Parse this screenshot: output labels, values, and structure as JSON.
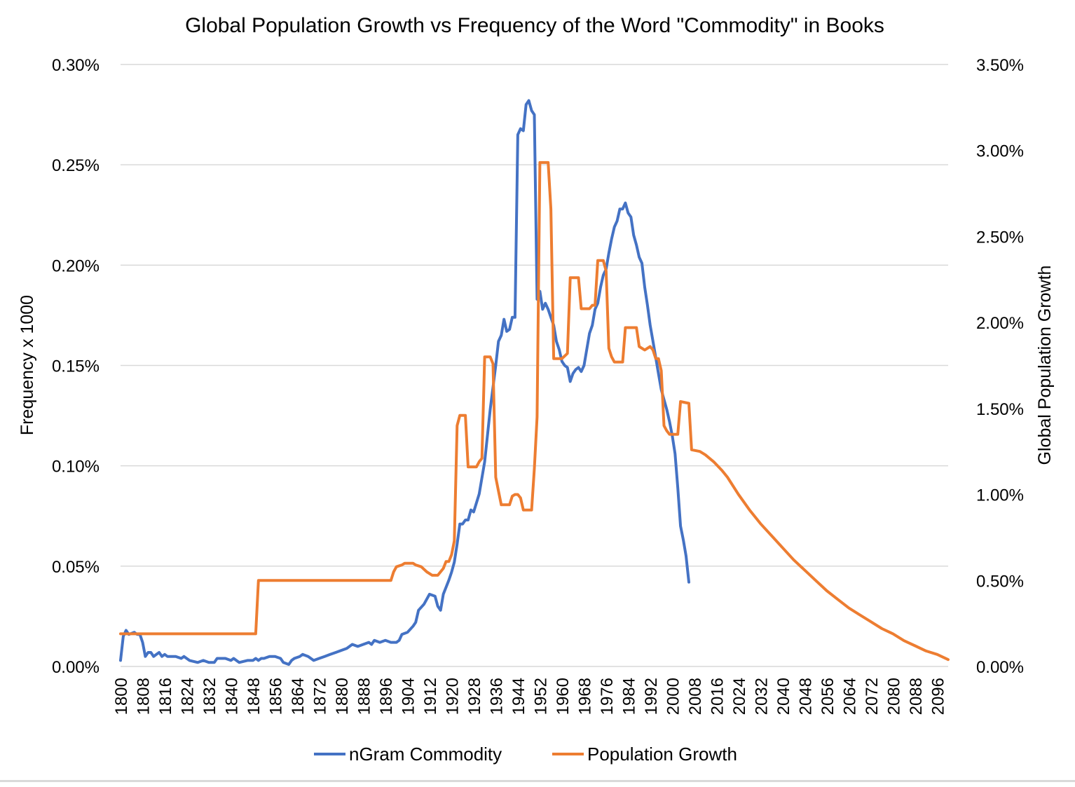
{
  "chart_data": {
    "type": "line",
    "title": "Global Population Growth vs Frequency of the Word \"Commodity\" in Books",
    "ylabel_left": "Frequency x 1000",
    "ylabel_right": "Global Population Growth",
    "xlabel": "",
    "xlim": [
      1800,
      2100
    ],
    "ylim_left": [
      0,
      0.3
    ],
    "ylim_right": [
      0,
      3.5
    ],
    "y_left_ticks": [
      "0.00%",
      "0.05%",
      "0.10%",
      "0.15%",
      "0.20%",
      "0.25%",
      "0.30%"
    ],
    "y_right_ticks": [
      "0.00%",
      "0.50%",
      "1.00%",
      "1.50%",
      "2.00%",
      "2.50%",
      "3.00%",
      "3.50%"
    ],
    "x_ticks": [
      "1800",
      "1808",
      "1816",
      "1824",
      "1832",
      "1840",
      "1848",
      "1856",
      "1864",
      "1872",
      "1880",
      "1888",
      "1896",
      "1904",
      "1912",
      "1920",
      "1928",
      "1936",
      "1944",
      "1952",
      "1960",
      "1968",
      "1976",
      "1984",
      "1992",
      "2000",
      "2008",
      "2016",
      "2024",
      "2032",
      "2040",
      "2048",
      "2056",
      "2064",
      "2072",
      "2080",
      "2088",
      "2096"
    ],
    "grid": true,
    "legend_position": "bottom",
    "series": [
      {
        "name": "nGram Commodity",
        "axis": "left",
        "color": "#4472C4",
        "points": [
          [
            1800,
            0.003
          ],
          [
            1801,
            0.015
          ],
          [
            1802,
            0.018
          ],
          [
            1803,
            0.016
          ],
          [
            1805,
            0.017
          ],
          [
            1806,
            0.016
          ],
          [
            1807,
            0.016
          ],
          [
            1808,
            0.012
          ],
          [
            1809,
            0.005
          ],
          [
            1810,
            0.007
          ],
          [
            1811,
            0.007
          ],
          [
            1812,
            0.005
          ],
          [
            1813,
            0.006
          ],
          [
            1814,
            0.007
          ],
          [
            1815,
            0.005
          ],
          [
            1816,
            0.006
          ],
          [
            1817,
            0.005
          ],
          [
            1820,
            0.005
          ],
          [
            1822,
            0.004
          ],
          [
            1823,
            0.005
          ],
          [
            1825,
            0.003
          ],
          [
            1828,
            0.002
          ],
          [
            1830,
            0.003
          ],
          [
            1832,
            0.002
          ],
          [
            1834,
            0.002
          ],
          [
            1835,
            0.004
          ],
          [
            1838,
            0.004
          ],
          [
            1840,
            0.003
          ],
          [
            1841,
            0.004
          ],
          [
            1842,
            0.003
          ],
          [
            1843,
            0.002
          ],
          [
            1846,
            0.003
          ],
          [
            1848,
            0.003
          ],
          [
            1849,
            0.004
          ],
          [
            1850,
            0.003
          ],
          [
            1851,
            0.004
          ],
          [
            1852,
            0.004
          ],
          [
            1854,
            0.005
          ],
          [
            1856,
            0.005
          ],
          [
            1858,
            0.004
          ],
          [
            1859,
            0.002
          ],
          [
            1861,
            0.001
          ],
          [
            1862,
            0.003
          ],
          [
            1863,
            0.004
          ],
          [
            1865,
            0.005
          ],
          [
            1866,
            0.006
          ],
          [
            1868,
            0.005
          ],
          [
            1869,
            0.004
          ],
          [
            1870,
            0.003
          ],
          [
            1872,
            0.004
          ],
          [
            1874,
            0.005
          ],
          [
            1876,
            0.006
          ],
          [
            1878,
            0.007
          ],
          [
            1880,
            0.008
          ],
          [
            1882,
            0.009
          ],
          [
            1884,
            0.011
          ],
          [
            1886,
            0.01
          ],
          [
            1888,
            0.011
          ],
          [
            1890,
            0.012
          ],
          [
            1891,
            0.011
          ],
          [
            1892,
            0.013
          ],
          [
            1894,
            0.012
          ],
          [
            1896,
            0.013
          ],
          [
            1898,
            0.012
          ],
          [
            1900,
            0.012
          ],
          [
            1901,
            0.013
          ],
          [
            1902,
            0.016
          ],
          [
            1904,
            0.017
          ],
          [
            1906,
            0.02
          ],
          [
            1907,
            0.022
          ],
          [
            1908,
            0.028
          ],
          [
            1910,
            0.031
          ],
          [
            1912,
            0.036
          ],
          [
            1914,
            0.035
          ],
          [
            1915,
            0.03
          ],
          [
            1916,
            0.028
          ],
          [
            1917,
            0.036
          ],
          [
            1919,
            0.043
          ],
          [
            1920,
            0.047
          ],
          [
            1921,
            0.052
          ],
          [
            1922,
            0.061
          ],
          [
            1923,
            0.071
          ],
          [
            1924,
            0.071
          ],
          [
            1925,
            0.073
          ],
          [
            1926,
            0.073
          ],
          [
            1927,
            0.078
          ],
          [
            1928,
            0.077
          ],
          [
            1930,
            0.086
          ],
          [
            1932,
            0.102
          ],
          [
            1934,
            0.128
          ],
          [
            1936,
            0.15
          ],
          [
            1937,
            0.162
          ],
          [
            1938,
            0.165
          ],
          [
            1939,
            0.173
          ],
          [
            1940,
            0.167
          ],
          [
            1941,
            0.168
          ],
          [
            1942,
            0.174
          ],
          [
            1943,
            0.174
          ],
          [
            1944,
            0.265
          ],
          [
            1945,
            0.268
          ],
          [
            1946,
            0.267
          ],
          [
            1947,
            0.28
          ],
          [
            1948,
            0.282
          ],
          [
            1949,
            0.277
          ],
          [
            1950,
            0.275
          ],
          [
            1951,
            0.183
          ],
          [
            1952,
            0.187
          ],
          [
            1953,
            0.178
          ],
          [
            1954,
            0.181
          ],
          [
            1955,
            0.178
          ],
          [
            1956,
            0.174
          ],
          [
            1957,
            0.17
          ],
          [
            1958,
            0.162
          ],
          [
            1959,
            0.158
          ],
          [
            1960,
            0.152
          ],
          [
            1961,
            0.15
          ],
          [
            1962,
            0.149
          ],
          [
            1963,
            0.142
          ],
          [
            1964,
            0.146
          ],
          [
            1965,
            0.148
          ],
          [
            1966,
            0.149
          ],
          [
            1967,
            0.147
          ],
          [
            1968,
            0.15
          ],
          [
            1969,
            0.158
          ],
          [
            1970,
            0.166
          ],
          [
            1971,
            0.17
          ],
          [
            1972,
            0.178
          ],
          [
            1973,
            0.181
          ],
          [
            1974,
            0.189
          ],
          [
            1975,
            0.195
          ],
          [
            1976,
            0.198
          ],
          [
            1977,
            0.206
          ],
          [
            1978,
            0.213
          ],
          [
            1979,
            0.219
          ],
          [
            1980,
            0.222
          ],
          [
            1981,
            0.228
          ],
          [
            1982,
            0.228
          ],
          [
            1983,
            0.231
          ],
          [
            1984,
            0.226
          ],
          [
            1985,
            0.224
          ],
          [
            1986,
            0.215
          ],
          [
            1987,
            0.21
          ],
          [
            1988,
            0.204
          ],
          [
            1989,
            0.201
          ],
          [
            1990,
            0.189
          ],
          [
            1991,
            0.18
          ],
          [
            1992,
            0.17
          ],
          [
            1993,
            0.162
          ],
          [
            1994,
            0.154
          ],
          [
            1995,
            0.146
          ],
          [
            1996,
            0.138
          ],
          [
            1997,
            0.133
          ],
          [
            1998,
            0.128
          ],
          [
            1999,
            0.122
          ],
          [
            2000,
            0.115
          ],
          [
            2001,
            0.106
          ],
          [
            2002,
            0.089
          ],
          [
            2003,
            0.07
          ],
          [
            2004,
            0.063
          ],
          [
            2005,
            0.055
          ],
          [
            2006,
            0.042
          ]
        ]
      },
      {
        "name": "Population Growth",
        "axis": "right",
        "color": "#ED7D31",
        "points": [
          [
            1800,
            0.19
          ],
          [
            1849,
            0.19
          ],
          [
            1850,
            0.5
          ],
          [
            1898,
            0.5
          ],
          [
            1899,
            0.55
          ],
          [
            1900,
            0.58
          ],
          [
            1902,
            0.59
          ],
          [
            1903,
            0.6
          ],
          [
            1906,
            0.6
          ],
          [
            1907,
            0.59
          ],
          [
            1909,
            0.58
          ],
          [
            1911,
            0.55
          ],
          [
            1913,
            0.53
          ],
          [
            1915,
            0.53
          ],
          [
            1917,
            0.57
          ],
          [
            1918,
            0.61
          ],
          [
            1919,
            0.61
          ],
          [
            1920,
            0.65
          ],
          [
            1921,
            0.73
          ],
          [
            1922,
            1.4
          ],
          [
            1923,
            1.46
          ],
          [
            1925,
            1.46
          ],
          [
            1926,
            1.16
          ],
          [
            1929,
            1.16
          ],
          [
            1930,
            1.19
          ],
          [
            1931,
            1.21
          ],
          [
            1932,
            1.8
          ],
          [
            1934,
            1.8
          ],
          [
            1935,
            1.76
          ],
          [
            1936,
            1.1
          ],
          [
            1937,
            1.02
          ],
          [
            1938,
            0.94
          ],
          [
            1941,
            0.94
          ],
          [
            1942,
            0.99
          ],
          [
            1943,
            1.0
          ],
          [
            1944,
            1.0
          ],
          [
            1945,
            0.98
          ],
          [
            1946,
            0.91
          ],
          [
            1949,
            0.91
          ],
          [
            1950,
            1.15
          ],
          [
            1951,
            1.45
          ],
          [
            1952,
            2.93
          ],
          [
            1955,
            2.93
          ],
          [
            1956,
            2.66
          ],
          [
            1957,
            1.79
          ],
          [
            1960,
            1.79
          ],
          [
            1962,
            1.82
          ],
          [
            1963,
            2.26
          ],
          [
            1966,
            2.26
          ],
          [
            1967,
            2.08
          ],
          [
            1970,
            2.08
          ],
          [
            1971,
            2.1
          ],
          [
            1972,
            2.1
          ],
          [
            1973,
            2.36
          ],
          [
            1975,
            2.36
          ],
          [
            1976,
            2.3
          ],
          [
            1977,
            1.85
          ],
          [
            1978,
            1.8
          ],
          [
            1979,
            1.77
          ],
          [
            1982,
            1.77
          ],
          [
            1983,
            1.97
          ],
          [
            1987,
            1.97
          ],
          [
            1988,
            1.86
          ],
          [
            1990,
            1.84
          ],
          [
            1992,
            1.86
          ],
          [
            1993,
            1.84
          ],
          [
            1994,
            1.79
          ],
          [
            1995,
            1.79
          ],
          [
            1996,
            1.72
          ],
          [
            1997,
            1.4
          ],
          [
            1998,
            1.37
          ],
          [
            1999,
            1.35
          ],
          [
            2002,
            1.35
          ],
          [
            2003,
            1.54
          ],
          [
            2006,
            1.53
          ],
          [
            2007,
            1.26
          ],
          [
            2010,
            1.25
          ],
          [
            2012,
            1.23
          ],
          [
            2015,
            1.19
          ],
          [
            2018,
            1.14
          ],
          [
            2020,
            1.1
          ],
          [
            2024,
            1.0
          ],
          [
            2028,
            0.91
          ],
          [
            2032,
            0.83
          ],
          [
            2036,
            0.76
          ],
          [
            2040,
            0.69
          ],
          [
            2044,
            0.62
          ],
          [
            2048,
            0.56
          ],
          [
            2052,
            0.5
          ],
          [
            2056,
            0.44
          ],
          [
            2060,
            0.39
          ],
          [
            2064,
            0.34
          ],
          [
            2068,
            0.3
          ],
          [
            2072,
            0.26
          ],
          [
            2076,
            0.22
          ],
          [
            2080,
            0.19
          ],
          [
            2084,
            0.15
          ],
          [
            2088,
            0.12
          ],
          [
            2092,
            0.09
          ],
          [
            2096,
            0.07
          ],
          [
            2100,
            0.04
          ]
        ]
      }
    ]
  }
}
